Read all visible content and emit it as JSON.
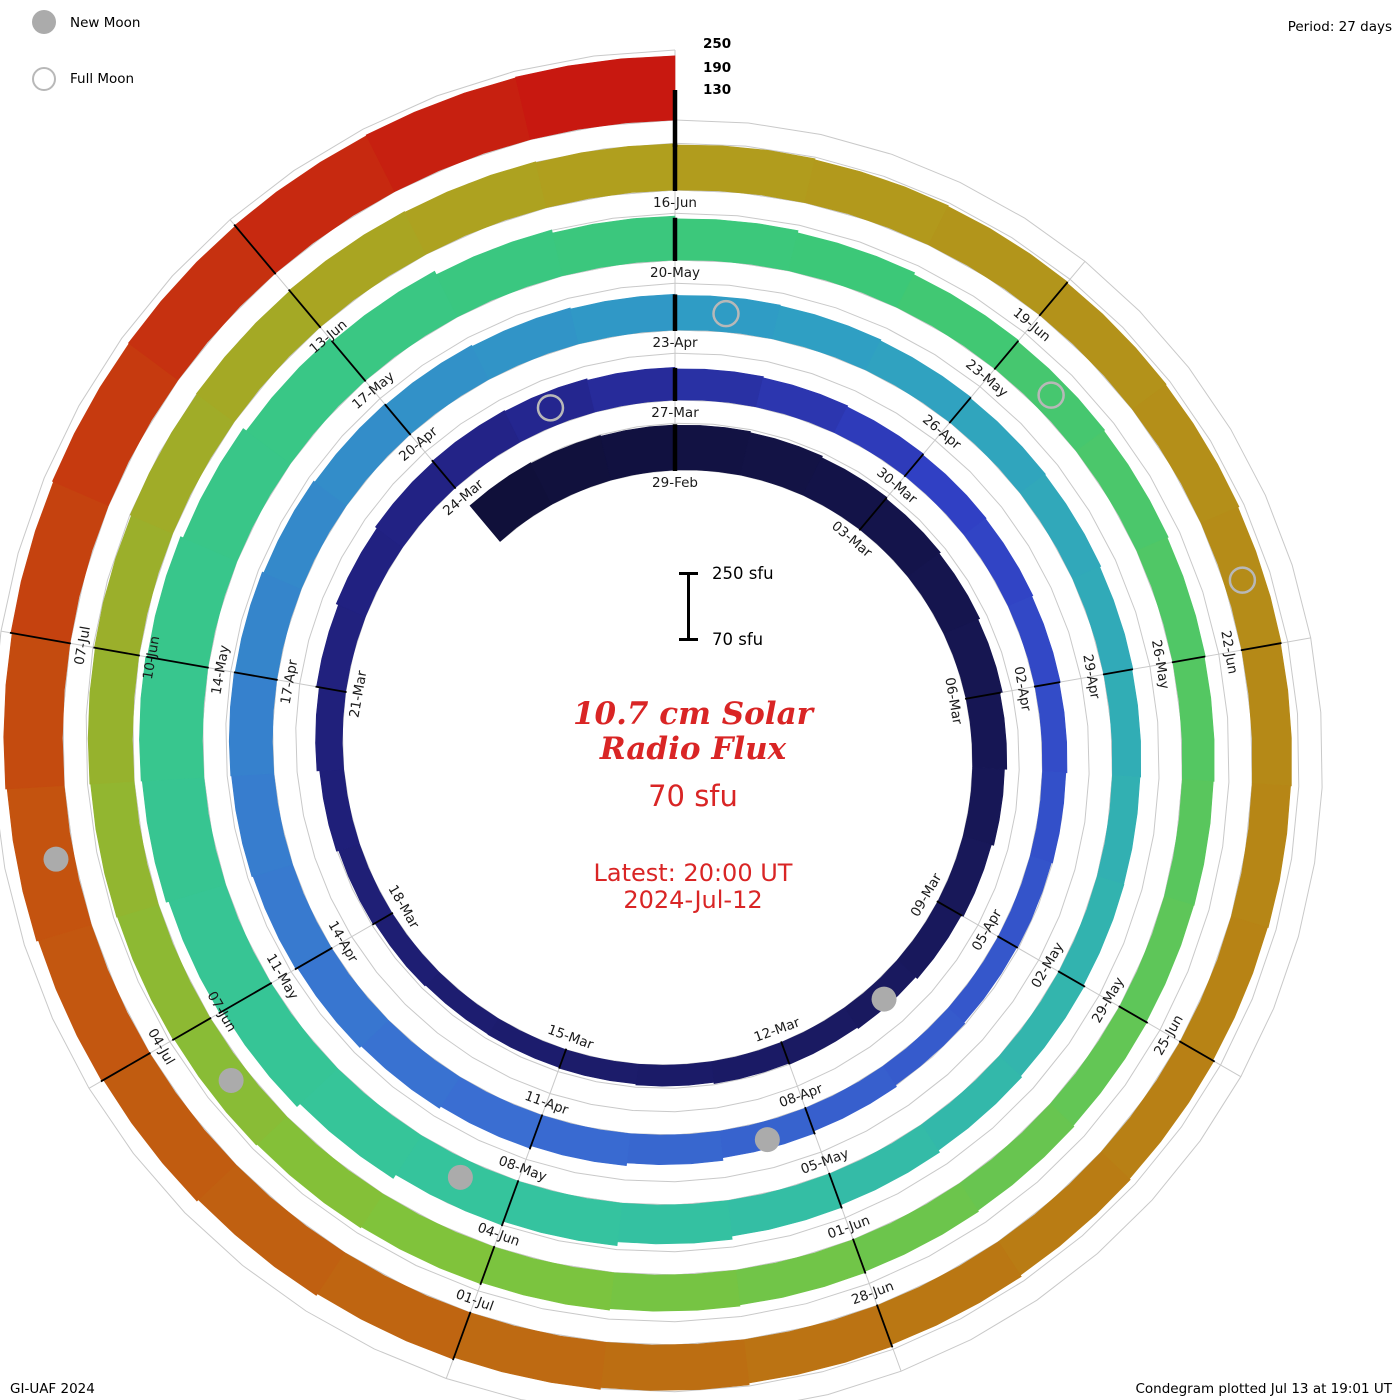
{
  "page": {
    "legend": {
      "new_moon": "New Moon",
      "full_moon": "Full Moon"
    },
    "period_label": "Period: 27 days",
    "footer_left": "GI-UAF 2024",
    "footer_right": "Condegram plotted Jul 13 at 19:01 UT"
  },
  "center": {
    "title_line1": "10.7 cm Solar",
    "title_line2": "Radio Flux",
    "baseline_label": "70 sfu",
    "latest_line1": "Latest: 20:00 UT",
    "latest_line2": "2024-Jul-12",
    "scale_top_label": "250 sfu",
    "scale_bottom_label": "70 sfu"
  },
  "chart_data": {
    "type": "bar",
    "subtype": "condegram-spiral",
    "title": "10.7 cm Solar Radio Flux",
    "period_days": 27,
    "direction": "clockwise",
    "flux_min_sfu": 70,
    "flux_max_sfu": 250,
    "grid_levels_sfu": [
      70,
      130,
      190,
      250
    ],
    "radial_tick_labels": [
      "250",
      "190",
      "130"
    ],
    "start_date": "2024-02-26",
    "top_alignment_date": "2024-02-29",
    "end_date": "2024-07-12",
    "daily_flux_sfu": [
      190,
      188,
      186,
      185,
      182,
      178,
      174,
      170,
      165,
      158,
      152,
      146,
      140,
      134,
      130,
      127,
      124,
      121,
      119,
      118,
      121,
      126,
      132,
      139,
      146,
      152,
      157,
      160,
      158,
      154,
      150,
      147,
      144,
      141,
      139,
      136,
      133,
      130,
      127,
      125,
      128,
      133,
      139,
      146,
      153,
      160,
      166,
      171,
      176,
      179,
      181,
      179,
      175,
      171,
      168,
      165,
      162,
      159,
      157,
      154,
      151,
      149,
      146,
      143,
      141,
      142,
      145,
      149,
      155,
      162,
      170,
      180,
      190,
      202,
      213,
      222,
      229,
      232,
      228,
      221,
      211,
      201,
      191,
      183,
      176,
      170,
      165,
      161,
      158,
      155,
      152,
      150,
      149,
      151,
      154,
      157,
      160,
      163,
      167,
      171,
      174,
      177,
      180,
      182,
      184,
      186,
      189,
      191,
      193,
      191,
      189,
      186,
      183,
      181,
      178,
      176,
      173,
      171,
      169,
      167,
      170,
      173,
      177,
      182,
      187,
      192,
      197,
      202,
      207,
      212,
      217,
      221,
      224,
      227,
      229,
      231,
      233,
      235
    ],
    "date_labels": [
      {
        "text": "29-Feb",
        "day": 3
      },
      {
        "text": "03-Mar",
        "day": 6
      },
      {
        "text": "06-Mar",
        "day": 9
      },
      {
        "text": "09-Mar",
        "day": 12
      },
      {
        "text": "12-Mar",
        "day": 15
      },
      {
        "text": "15-Mar",
        "day": 18
      },
      {
        "text": "18-Mar",
        "day": 21
      },
      {
        "text": "21-Mar",
        "day": 24
      },
      {
        "text": "24-Mar",
        "day": 27
      },
      {
        "text": "27-Mar",
        "day": 30
      },
      {
        "text": "30-Mar",
        "day": 33
      },
      {
        "text": "02-Apr",
        "day": 36
      },
      {
        "text": "05-Apr",
        "day": 39
      },
      {
        "text": "08-Apr",
        "day": 42
      },
      {
        "text": "11-Apr",
        "day": 45
      },
      {
        "text": "14-Apr",
        "day": 48
      },
      {
        "text": "17-Apr",
        "day": 51
      },
      {
        "text": "20-Apr",
        "day": 54
      },
      {
        "text": "23-Apr",
        "day": 57
      },
      {
        "text": "26-Apr",
        "day": 60
      },
      {
        "text": "29-Apr",
        "day": 63
      },
      {
        "text": "02-May",
        "day": 66
      },
      {
        "text": "05-May",
        "day": 69
      },
      {
        "text": "08-May",
        "day": 72
      },
      {
        "text": "11-May",
        "day": 75
      },
      {
        "text": "14-May",
        "day": 78
      },
      {
        "text": "17-May",
        "day": 81
      },
      {
        "text": "20-May",
        "day": 84
      },
      {
        "text": "23-May",
        "day": 87
      },
      {
        "text": "26-May",
        "day": 90
      },
      {
        "text": "29-May",
        "day": 93
      },
      {
        "text": "01-Jun",
        "day": 96
      },
      {
        "text": "04-Jun",
        "day": 99
      },
      {
        "text": "07-Jun",
        "day": 102
      },
      {
        "text": "10-Jun",
        "day": 105
      },
      {
        "text": "13-Jun",
        "day": 108
      },
      {
        "text": "16-Jun",
        "day": 111
      },
      {
        "text": "19-Jun",
        "day": 114
      },
      {
        "text": "22-Jun",
        "day": 117
      },
      {
        "text": "25-Jun",
        "day": 120
      },
      {
        "text": "28-Jun",
        "day": 123
      },
      {
        "text": "01-Jul",
        "day": 126
      },
      {
        "text": "04-Jul",
        "day": 129
      },
      {
        "text": "07-Jul",
        "day": 132
      }
    ],
    "new_moons": [
      {
        "date": "2024-03-10",
        "day": 13
      },
      {
        "date": "2024-04-08",
        "day": 42
      },
      {
        "date": "2024-05-08",
        "day": 72
      },
      {
        "date": "2024-06-06",
        "day": 101
      },
      {
        "date": "2024-07-05",
        "day": 130
      }
    ],
    "full_moons": [
      {
        "date": "2024-03-25",
        "day": 28
      },
      {
        "date": "2024-04-23",
        "day": 57
      },
      {
        "date": "2024-05-23",
        "day": 87
      },
      {
        "date": "2024-06-21",
        "day": 116
      }
    ],
    "colors": {
      "text": "#000000",
      "accent_red": "#d92525",
      "grid": "#c9c9c9",
      "moon_fill": "#ababab",
      "moon_stroke": "#b8b8b8",
      "colormap_stops": [
        [
          "0.00",
          "#10103a"
        ],
        [
          "0.20",
          "#232388"
        ],
        [
          "0.24",
          "#3040c4"
        ],
        [
          "0.33",
          "#3a6fd2"
        ],
        [
          "0.42",
          "#2f9ec4"
        ],
        [
          "0.52",
          "#35c49e"
        ],
        [
          "0.62",
          "#3cc878"
        ],
        [
          "0.72",
          "#7ec43c"
        ],
        [
          "0.80",
          "#b0a01e"
        ],
        [
          "0.88",
          "#b87e14"
        ],
        [
          "0.95",
          "#c4520f"
        ],
        [
          "1.00",
          "#c81810"
        ]
      ]
    },
    "layout_hints": {
      "start_angle_deg": 0,
      "rings": 5,
      "legend_position": "top-left"
    }
  }
}
